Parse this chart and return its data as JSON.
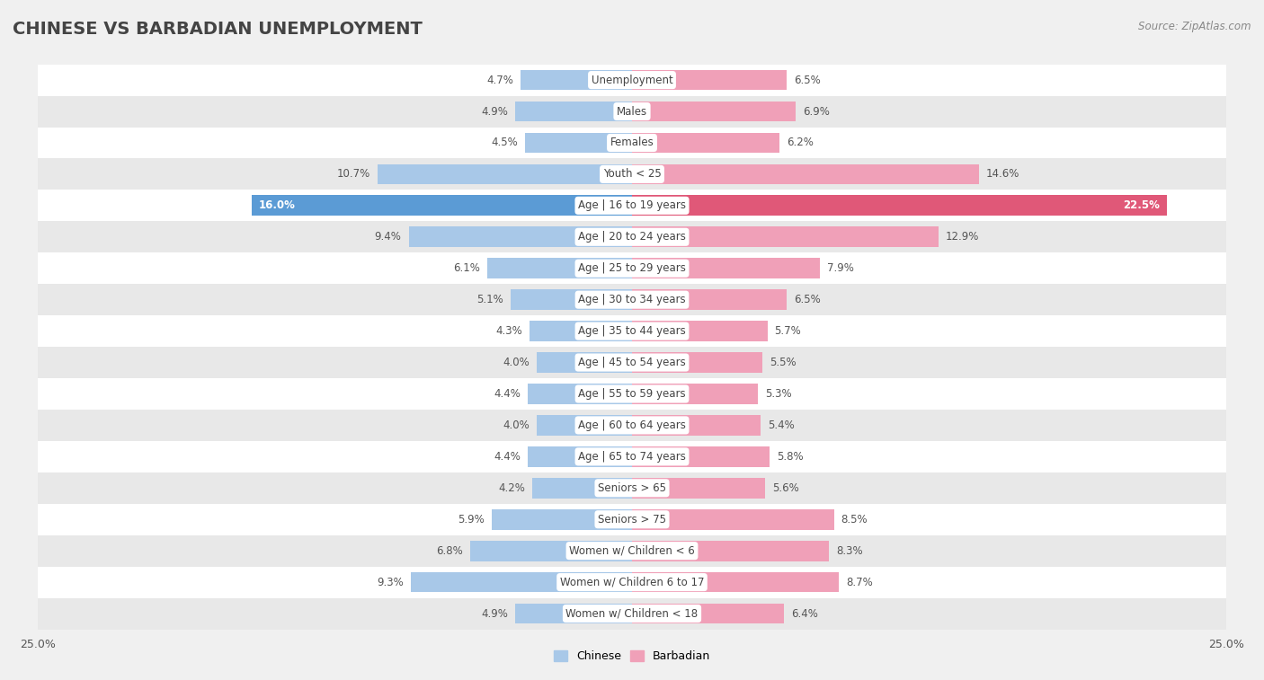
{
  "title": "CHINESE VS BARBADIAN UNEMPLOYMENT",
  "source": "Source: ZipAtlas.com",
  "categories": [
    "Unemployment",
    "Males",
    "Females",
    "Youth < 25",
    "Age | 16 to 19 years",
    "Age | 20 to 24 years",
    "Age | 25 to 29 years",
    "Age | 30 to 34 years",
    "Age | 35 to 44 years",
    "Age | 45 to 54 years",
    "Age | 55 to 59 years",
    "Age | 60 to 64 years",
    "Age | 65 to 74 years",
    "Seniors > 65",
    "Seniors > 75",
    "Women w/ Children < 6",
    "Women w/ Children 6 to 17",
    "Women w/ Children < 18"
  ],
  "chinese": [
    4.7,
    4.9,
    4.5,
    10.7,
    16.0,
    9.4,
    6.1,
    5.1,
    4.3,
    4.0,
    4.4,
    4.0,
    4.4,
    4.2,
    5.9,
    6.8,
    9.3,
    4.9
  ],
  "barbadian": [
    6.5,
    6.9,
    6.2,
    14.6,
    22.5,
    12.9,
    7.9,
    6.5,
    5.7,
    5.5,
    5.3,
    5.4,
    5.8,
    5.6,
    8.5,
    8.3,
    8.7,
    6.4
  ],
  "chinese_color": "#a8c8e8",
  "barbadian_color": "#f0a0b8",
  "highlight_chinese_color": "#5b9bd5",
  "highlight_barbadian_color": "#e05878",
  "axis_max": 25.0,
  "background_color": "#f0f0f0",
  "bar_row_light": "#ffffff",
  "bar_row_dark": "#e8e8e8",
  "row_sep_color": "#d0d0d0",
  "text_color": "#555555",
  "label_bg": "#ffffff"
}
